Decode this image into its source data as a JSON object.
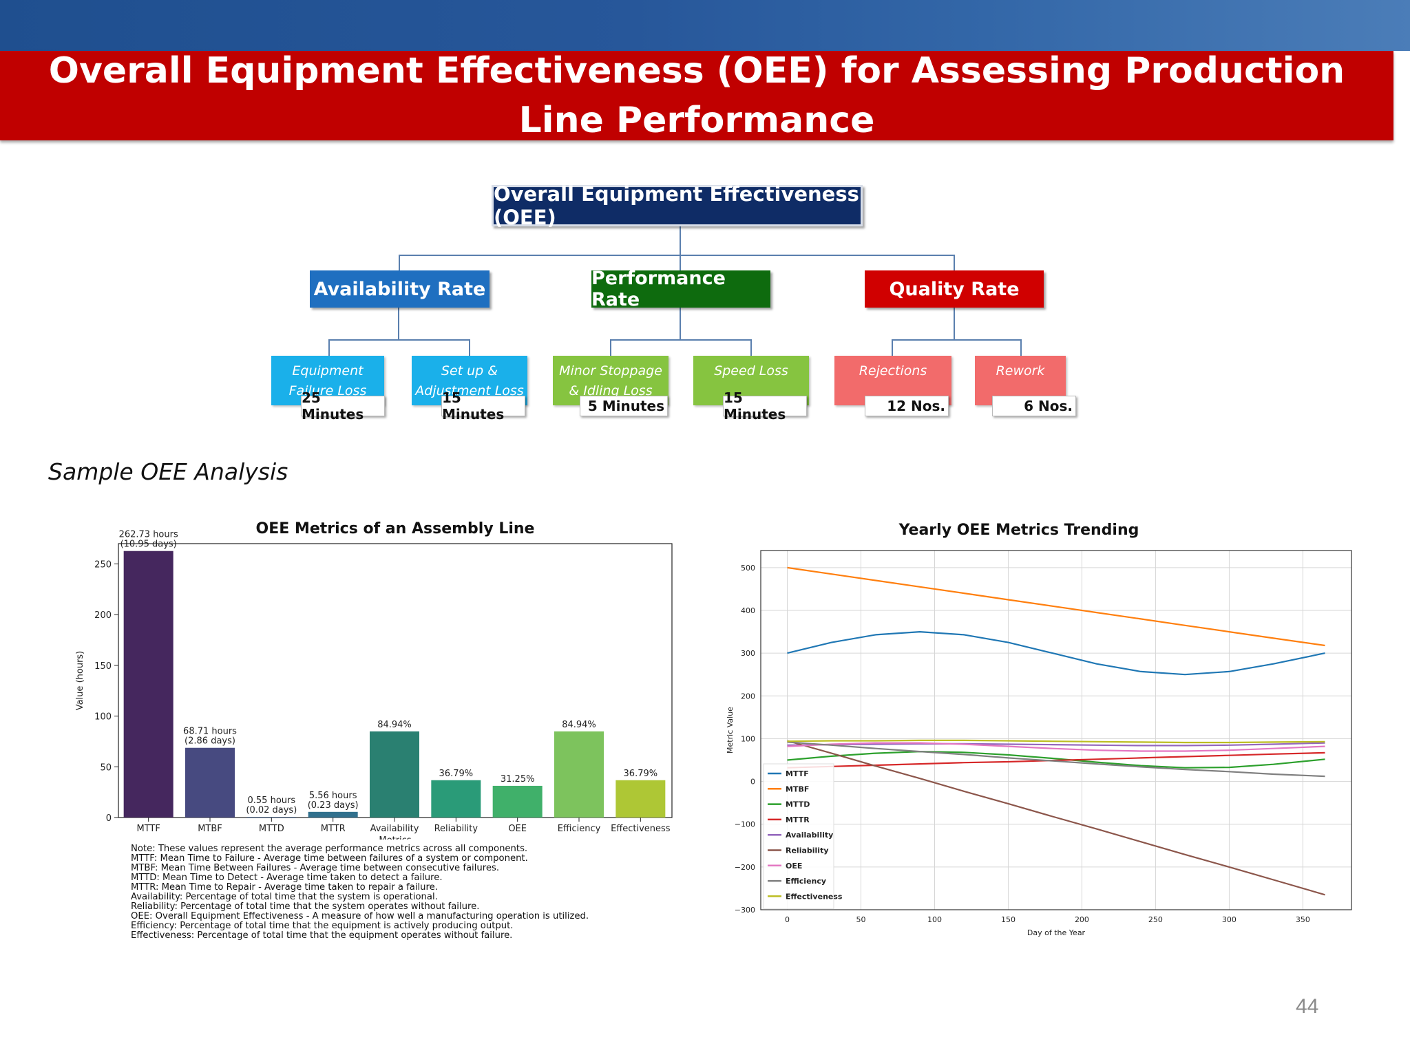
{
  "slide": {
    "title": "Overall Equipment Effectiveness (OEE) for Assessing Production Line Performance",
    "subtitle": "Sample OEE Analysis",
    "page_number": "44"
  },
  "diagram": {
    "root": "Overall Equipment Effectiveness (OEE)",
    "categories": [
      {
        "label": "Availability Rate",
        "color": "#1f6fc0"
      },
      {
        "label": "Performance Rate",
        "color": "#0e6b0e"
      },
      {
        "label": "Quality Rate",
        "color": "#d00000"
      }
    ],
    "losses": [
      {
        "label": "Equipment Failure Loss",
        "value": "25 Minutes",
        "color": "#1ab0ea"
      },
      {
        "label": "Set up & Adjustment Loss",
        "value": "15 Minutes",
        "color": "#1ab0ea"
      },
      {
        "label": "Minor Stoppage & Idling Loss",
        "value": "5 Minutes",
        "color": "#86c440"
      },
      {
        "label": "Speed Loss",
        "value": "15 Minutes",
        "color": "#86c440"
      },
      {
        "label": "Rejections",
        "value": "12 Nos.",
        "color": "#f26b6b"
      },
      {
        "label": "Rework",
        "value": "6 Nos.",
        "color": "#f26b6b"
      }
    ]
  },
  "notes": [
    "Note: These values represent the average performance metrics across all components.",
    "MTTF: Mean Time to Failure - Average time between failures of a system or component.",
    "MTBF: Mean Time Between Failures - Average time between consecutive failures.",
    "MTTD: Mean Time to Detect - Average time taken to detect a failure.",
    "MTTR: Mean Time to Repair - Average time taken to repair a failure.",
    "Availability: Percentage of total time that the system is operational.",
    "Reliability: Percentage of total time that the system operates without failure.",
    "OEE: Overall Equipment Effectiveness - A measure of how well a manufacturing operation is utilized.",
    "Efficiency: Percentage of total time that the equipment is actively producing output.",
    "Effectiveness: Percentage of total time that the equipment operates without failure."
  ],
  "chart_data": [
    {
      "type": "bar",
      "title": "OEE Metrics of an Assembly Line",
      "xlabel": "Metrics",
      "ylabel": "Value (hours)",
      "ylim": [
        0,
        270
      ],
      "yticks": [
        0,
        50,
        100,
        150,
        200,
        250
      ],
      "grid": false,
      "categories": [
        "MTTF",
        "MTBF",
        "MTTD",
        "MTTR",
        "Availability",
        "Reliability",
        "OEE",
        "Efficiency",
        "Effectiveness"
      ],
      "values": [
        262.73,
        68.71,
        0.55,
        5.56,
        84.94,
        36.79,
        31.25,
        84.94,
        36.79
      ],
      "colors": [
        "#45275e",
        "#474a80",
        "#3a5d8b",
        "#31708d",
        "#2a8071",
        "#2a9b78",
        "#40b06a",
        "#7dc35d",
        "#aec735"
      ],
      "data_labels": [
        [
          "262.73 hours",
          "(10.95 days)"
        ],
        [
          "68.71 hours",
          "(2.86 days)"
        ],
        [
          "0.55 hours",
          "(0.02 days)"
        ],
        [
          "5.56 hours",
          "(0.23 days)"
        ],
        [
          "84.94%"
        ],
        [
          "36.79%"
        ],
        [
          "31.25%"
        ],
        [
          "84.94%"
        ],
        [
          "36.79%"
        ]
      ]
    },
    {
      "type": "line",
      "title": "Yearly OEE Metrics Trending",
      "xlabel": "Day of the Year",
      "ylabel": "Metric Value",
      "xlim": [
        -18,
        383
      ],
      "ylim": [
        -300,
        540
      ],
      "xticks": [
        0,
        50,
        100,
        150,
        200,
        250,
        300,
        350
      ],
      "yticks": [
        -300,
        -200,
        -100,
        0,
        100,
        200,
        300,
        400,
        500
      ],
      "grid": true,
      "legend": "lower-left",
      "x": [
        0,
        30,
        60,
        90,
        120,
        150,
        180,
        210,
        240,
        270,
        300,
        330,
        365
      ],
      "series": [
        {
          "name": "MTTF",
          "color": "#1f77b4",
          "values": [
            300,
            325,
            343,
            350,
            343,
            325,
            300,
            275,
            257,
            250,
            257,
            275,
            300
          ]
        },
        {
          "name": "MTBF",
          "color": "#ff7f0e",
          "values": [
            500,
            485,
            470,
            455,
            440,
            425,
            410,
            395,
            380,
            365,
            350,
            335,
            318
          ]
        },
        {
          "name": "MTTD",
          "color": "#2ca02c",
          "values": [
            50,
            59,
            66,
            70,
            68,
            62,
            54,
            45,
            37,
            32,
            33,
            40,
            52
          ]
        },
        {
          "name": "MTTR",
          "color": "#d62728",
          "values": [
            32,
            35,
            38,
            41,
            44,
            46,
            49,
            52,
            55,
            58,
            61,
            64,
            67
          ]
        },
        {
          "name": "Availability",
          "color": "#9467bd",
          "values": [
            85,
            86,
            87,
            88,
            88,
            87,
            86,
            85,
            84,
            84,
            85,
            87,
            90
          ]
        },
        {
          "name": "Reliability",
          "color": "#8c564b",
          "values": [
            95,
            66,
            36,
            7,
            -23,
            -52,
            -82,
            -111,
            -141,
            -171,
            -200,
            -230,
            -265
          ]
        },
        {
          "name": "OEE",
          "color": "#e377c2",
          "values": [
            82,
            87,
            90,
            90,
            87,
            82,
            77,
            73,
            71,
            71,
            73,
            77,
            82
          ]
        },
        {
          "name": "Efficiency",
          "color": "#7f7f7f",
          "values": [
            92,
            85,
            77,
            70,
            63,
            55,
            48,
            41,
            34,
            28,
            23,
            17,
            12
          ]
        },
        {
          "name": "Effectiveness",
          "color": "#bcbd22",
          "values": [
            94,
            95,
            95,
            96,
            96,
            95,
            94,
            93,
            92,
            91,
            91,
            92,
            93
          ]
        }
      ]
    }
  ]
}
